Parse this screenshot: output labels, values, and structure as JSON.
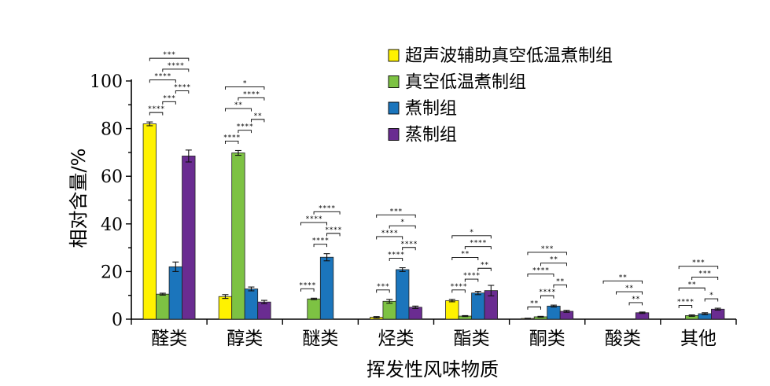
{
  "chart_data": {
    "type": "bar",
    "xlabel": "挥发性风味物质",
    "ylabel": "相对含量/%",
    "ylim": [
      0,
      100
    ],
    "yticks": [
      0,
      20,
      40,
      60,
      80,
      100
    ],
    "legend_position": "top-right",
    "categories": [
      "醛类",
      "醇类",
      "醚类",
      "烃类",
      "酯类",
      "酮类",
      "酸类",
      "其他"
    ],
    "series": [
      {
        "name": "超声波辅助真空低温煮制组",
        "color": "#FFF200",
        "values": [
          82.0,
          9.5,
          0,
          0.8,
          7.8,
          0.3,
          0,
          0
        ],
        "errors": [
          0.8,
          0.8,
          0,
          0.3,
          0.5,
          0.1,
          0,
          0
        ]
      },
      {
        "name": "真空低温煮制组",
        "color": "#7DC243",
        "values": [
          10.5,
          69.8,
          8.5,
          7.5,
          1.3,
          1.0,
          0,
          1.5
        ],
        "errors": [
          0.4,
          1.0,
          0.3,
          0.8,
          0.2,
          0.2,
          0,
          0.3
        ]
      },
      {
        "name": "煮制组",
        "color": "#1B75BC",
        "values": [
          22.0,
          12.7,
          26.0,
          20.8,
          11.0,
          5.5,
          0,
          2.3
        ],
        "errors": [
          2.0,
          0.8,
          1.5,
          0.8,
          0.7,
          0.4,
          0,
          0.4
        ]
      },
      {
        "name": "蒸制组",
        "color": "#6A2C91",
        "values": [
          68.5,
          7.2,
          0,
          5.0,
          12.0,
          3.3,
          2.7,
          4.2
        ],
        "errors": [
          2.5,
          0.7,
          0,
          0.5,
          2.2,
          0.4,
          0.3,
          0.4
        ]
      }
    ],
    "significance": [
      {
        "cat": 0,
        "brackets": [
          {
            "from": 0,
            "to": 1,
            "label": "****"
          },
          {
            "from": 0,
            "to": 2,
            "label": "****"
          },
          {
            "from": 0,
            "to": 3,
            "label": "***"
          },
          {
            "from": 1,
            "to": 2,
            "label": "***"
          },
          {
            "from": 1,
            "to": 3,
            "label": "****"
          },
          {
            "from": 2,
            "to": 3,
            "label": "****"
          }
        ]
      },
      {
        "cat": 1,
        "brackets": [
          {
            "from": 0,
            "to": 1,
            "label": "****"
          },
          {
            "from": 0,
            "to": 2,
            "label": "**"
          },
          {
            "from": 0,
            "to": 3,
            "label": "*"
          },
          {
            "from": 1,
            "to": 2,
            "label": "****"
          },
          {
            "from": 1,
            "to": 3,
            "label": "****"
          },
          {
            "from": 2,
            "to": 3,
            "label": "**"
          }
        ]
      },
      {
        "cat": 2,
        "brackets": [
          {
            "from": 0,
            "to": 1,
            "label": "****"
          },
          {
            "from": 0,
            "to": 2,
            "label": "****"
          },
          {
            "from": 1,
            "to": 2,
            "label": "****"
          },
          {
            "from": 1,
            "to": 3,
            "label": "****"
          },
          {
            "from": 2,
            "to": 3,
            "label": "****"
          }
        ]
      },
      {
        "cat": 3,
        "brackets": [
          {
            "from": 0,
            "to": 1,
            "label": "***"
          },
          {
            "from": 0,
            "to": 2,
            "label": "****"
          },
          {
            "from": 0,
            "to": 3,
            "label": "***"
          },
          {
            "from": 1,
            "to": 2,
            "label": "****"
          },
          {
            "from": 1,
            "to": 3,
            "label": "*"
          },
          {
            "from": 2,
            "to": 3,
            "label": "****"
          }
        ]
      },
      {
        "cat": 4,
        "brackets": [
          {
            "from": 0,
            "to": 1,
            "label": "****"
          },
          {
            "from": 0,
            "to": 2,
            "label": "**"
          },
          {
            "from": 0,
            "to": 3,
            "label": "*"
          },
          {
            "from": 1,
            "to": 2,
            "label": "****"
          },
          {
            "from": 1,
            "to": 3,
            "label": "****"
          },
          {
            "from": 2,
            "to": 3,
            "label": "**"
          }
        ]
      },
      {
        "cat": 5,
        "brackets": [
          {
            "from": 0,
            "to": 1,
            "label": "**"
          },
          {
            "from": 0,
            "to": 2,
            "label": "****"
          },
          {
            "from": 0,
            "to": 3,
            "label": "***"
          },
          {
            "from": 1,
            "to": 2,
            "label": "****"
          },
          {
            "from": 1,
            "to": 3,
            "label": "**"
          },
          {
            "from": 2,
            "to": 3,
            "label": "**"
          }
        ]
      },
      {
        "cat": 6,
        "brackets": [
          {
            "from": 0,
            "to": 3,
            "label": "**"
          },
          {
            "from": 1,
            "to": 3,
            "label": "**"
          },
          {
            "from": 2,
            "to": 3,
            "label": "**"
          }
        ]
      },
      {
        "cat": 7,
        "brackets": [
          {
            "from": 0,
            "to": 1,
            "label": "****"
          },
          {
            "from": 0,
            "to": 2,
            "label": "**"
          },
          {
            "from": 0,
            "to": 3,
            "label": "***"
          },
          {
            "from": 1,
            "to": 3,
            "label": "***"
          },
          {
            "from": 2,
            "to": 3,
            "label": "*"
          }
        ]
      }
    ]
  }
}
